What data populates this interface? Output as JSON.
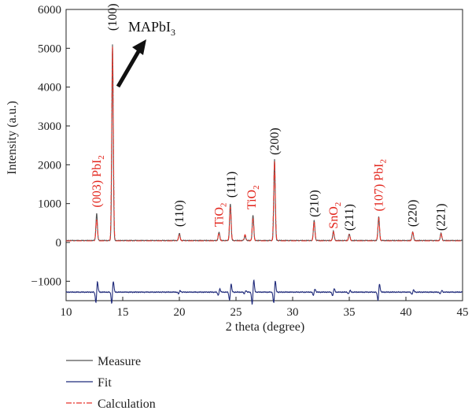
{
  "chart_data": {
    "type": "line",
    "xlabel": "2 theta (degree)",
    "ylabel": "Intensity (a.u.)",
    "xlim": [
      10,
      45
    ],
    "ylim": [
      -1500,
      6000
    ],
    "x_ticks": [
      "10",
      "15",
      "20",
      "25",
      "30",
      "35",
      "40",
      "45"
    ],
    "y_ticks": [
      "6000",
      "5000",
      "4000",
      "3000",
      "2000",
      "1000",
      "0",
      "−1000"
    ],
    "legend_position": "bottom-left",
    "colors": {
      "measure": "#555555",
      "fit": "#1f2a7a",
      "calculation": "#e8332a",
      "label_black": "#111111",
      "label_red": "#e2231a"
    },
    "measure_baseline": 50,
    "fit_baseline": -1280,
    "peaks": [
      {
        "x": 12.7,
        "measure": 700,
        "calc": 560,
        "fit": 380
      },
      {
        "x": 14.1,
        "measure": 5050,
        "calc": 5000,
        "fit": 400
      },
      {
        "x": 20.0,
        "measure": 180,
        "calc": 170,
        "fit": 60
      },
      {
        "x": 23.5,
        "measure": 220,
        "calc": 200,
        "fit": 120
      },
      {
        "x": 24.5,
        "measure": 950,
        "calc": 870,
        "fit": 300
      },
      {
        "x": 25.8,
        "measure": 120,
        "calc": 160,
        "fit": 60
      },
      {
        "x": 26.5,
        "measure": 650,
        "calc": 560,
        "fit": 450
      },
      {
        "x": 28.4,
        "measure": 2100,
        "calc": 2050,
        "fit": 400
      },
      {
        "x": 31.9,
        "measure": 520,
        "calc": 500,
        "fit": 120
      },
      {
        "x": 33.6,
        "measure": 240,
        "calc": 230,
        "fit": 130
      },
      {
        "x": 35.0,
        "measure": 170,
        "calc": 160,
        "fit": 60
      },
      {
        "x": 37.6,
        "measure": 620,
        "calc": 600,
        "fit": 300
      },
      {
        "x": 40.6,
        "measure": 230,
        "calc": 220,
        "fit": 80
      },
      {
        "x": 43.1,
        "measure": 190,
        "calc": 180,
        "fit": 60
      }
    ],
    "annotations": [
      {
        "id": "100",
        "text": "(100)",
        "color": "black",
        "x": 14.1,
        "y": 5450
      },
      {
        "id": "003pbi2",
        "text": "(003) PbI",
        "sub": "2",
        "color": "red",
        "x": 12.7,
        "y": 900
      },
      {
        "id": "110",
        "text": "(110)",
        "color": "black",
        "x": 20.0,
        "y": 400
      },
      {
        "id": "tio2a",
        "text": "TiO",
        "sub": "2",
        "color": "red",
        "x": 23.5,
        "y": 400
      },
      {
        "id": "111",
        "text": "(111)",
        "color": "black",
        "x": 24.6,
        "y": 1150
      },
      {
        "id": "tio2b",
        "text": "TiO",
        "sub": "2",
        "color": "red",
        "x": 26.4,
        "y": 850
      },
      {
        "id": "200",
        "text": "(200)",
        "color": "black",
        "x": 28.4,
        "y": 2250
      },
      {
        "id": "210",
        "text": "(210)",
        "color": "black",
        "x": 31.9,
        "y": 650
      },
      {
        "id": "sno2",
        "text": "SnO",
        "sub": "2",
        "color": "red",
        "x": 33.6,
        "y": 350
      },
      {
        "id": "211",
        "text": "(211)",
        "color": "black",
        "x": 35.0,
        "y": 300
      },
      {
        "id": "107pbi2",
        "text": "(107) PbI",
        "sub": "2",
        "color": "red",
        "x": 37.6,
        "y": 800
      },
      {
        "id": "220",
        "text": "(220)",
        "color": "black",
        "x": 40.6,
        "y": 400
      },
      {
        "id": "221",
        "text": "(221)",
        "color": "black",
        "x": 43.1,
        "y": 300
      }
    ],
    "phase_label": {
      "text": "MAPbI",
      "sub": "3"
    },
    "legend": [
      {
        "key": "measure",
        "label": "Measure"
      },
      {
        "key": "fit",
        "label": "Fit"
      },
      {
        "key": "calculation",
        "label": "Calculation"
      }
    ]
  }
}
